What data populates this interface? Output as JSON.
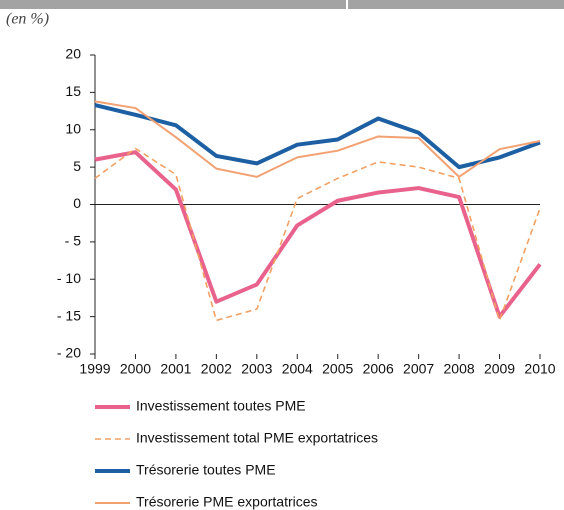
{
  "chart_data": {
    "type": "line",
    "subtitle": "(en %)",
    "categories": [
      "1999",
      "2000",
      "2001",
      "2002",
      "2003",
      "2004",
      "2005",
      "2006",
      "2007",
      "2008",
      "2009",
      "2010"
    ],
    "ylim": [
      -20,
      20
    ],
    "yticks": [
      {
        "value": -20,
        "label": "- 20"
      },
      {
        "value": -15,
        "label": "- 15"
      },
      {
        "value": -10,
        "label": "- 10"
      },
      {
        "value": -5,
        "label": "- 5"
      },
      0,
      5,
      10,
      15,
      20
    ],
    "grid": false,
    "series": [
      {
        "name": "Investissement toutes PME",
        "color": "#e8628c",
        "linewidth": 4,
        "dashed": false,
        "values": [
          6,
          7,
          2,
          -13,
          -10.7,
          -2.8,
          0.5,
          1.6,
          2.2,
          1,
          -15,
          -8
        ]
      },
      {
        "name": "Investissement total PME exportatrices",
        "color": "#f2a163",
        "linewidth": 1.6,
        "dashed": true,
        "values": [
          3.5,
          7.5,
          4,
          -15.5,
          -14,
          0.8,
          3.5,
          5.7,
          5,
          3.5,
          -15.5,
          -0.5
        ]
      },
      {
        "name": "Trésorerie toutes PME",
        "color": "#1c5fa3",
        "linewidth": 4,
        "dashed": false,
        "values": [
          13.3,
          12,
          10.6,
          6.5,
          5.5,
          8,
          8.7,
          11.5,
          9.6,
          5,
          6.3,
          8.3
        ]
      },
      {
        "name": "Trésorerie PME exportatrices",
        "color": "#f2a173",
        "linewidth": 2,
        "dashed": false,
        "values": [
          13.8,
          12.9,
          9,
          4.8,
          3.7,
          6.3,
          7.2,
          9.1,
          8.9,
          3.7,
          7.4,
          8.5
        ]
      }
    ]
  }
}
